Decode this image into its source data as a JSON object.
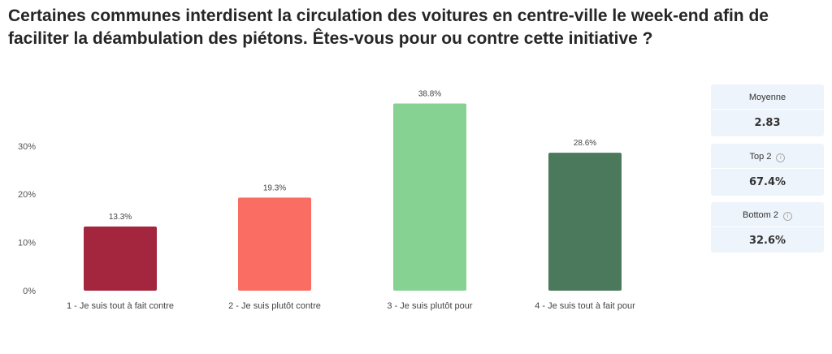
{
  "title": "Certaines communes interdisent la circulation des voitures en centre-ville le week-end afin de faciliter la déambulation des piétons. Êtes-vous pour ou contre cette initiative ?",
  "chart_data": {
    "type": "bar",
    "categories": [
      "1 - Je suis tout à fait contre",
      "2 - Je suis plutôt contre",
      "3 - Je suis plutôt pour",
      "4 - Je suis tout à fait pour"
    ],
    "values": [
      13.3,
      19.3,
      38.8,
      28.6
    ],
    "value_labels": [
      "13.3%",
      "19.3%",
      "38.8%",
      "28.6%"
    ],
    "colors": [
      "#a3263e",
      "#f96d62",
      "#86d293",
      "#4a7a5b"
    ],
    "ylim": [
      0,
      40
    ],
    "yticks": [
      0,
      10,
      20,
      30
    ],
    "ytick_labels": [
      "0%",
      "10%",
      "20%",
      "30%"
    ],
    "grid": false
  },
  "stats": [
    {
      "label": "Moyenne",
      "value": "2.83",
      "info": false
    },
    {
      "label": "Top 2",
      "value": "67.4%",
      "info": true
    },
    {
      "label": "Bottom 2",
      "value": "32.6%",
      "info": true
    }
  ]
}
